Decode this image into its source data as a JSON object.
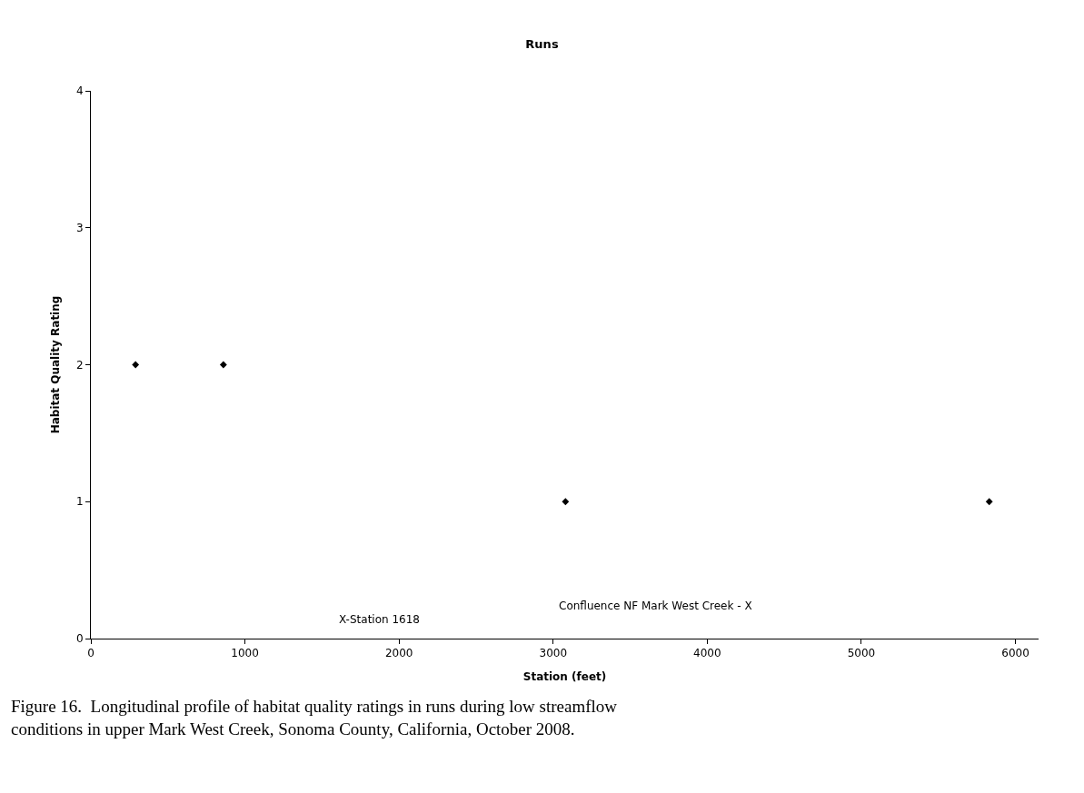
{
  "chart_data": {
    "type": "scatter",
    "title": "Runs",
    "xlabel": "Station (feet)",
    "ylabel": "Habitat Quality Rating",
    "x": [
      290,
      860,
      3080,
      5830
    ],
    "series": [
      {
        "color": "#000000",
        "values": [
          2,
          2,
          1,
          1
        ]
      }
    ],
    "xlim": [
      0,
      6150
    ],
    "xticks": [
      0,
      1000,
      2000,
      3000,
      4000,
      5000,
      6000
    ],
    "ylim": [
      0,
      4
    ],
    "yticks": [
      0,
      1,
      2,
      3,
      4
    ],
    "marker": "diamond",
    "grid": false,
    "annotations": [
      "X-Station 1618",
      "Confluence NF Mark West Creek - X",
      "Figure 16.  Longitudinal profile of habitat quality ratings in runs during low streamflow conditions in upper Mark West Creek, Sonoma County, California, October 2008."
    ]
  }
}
